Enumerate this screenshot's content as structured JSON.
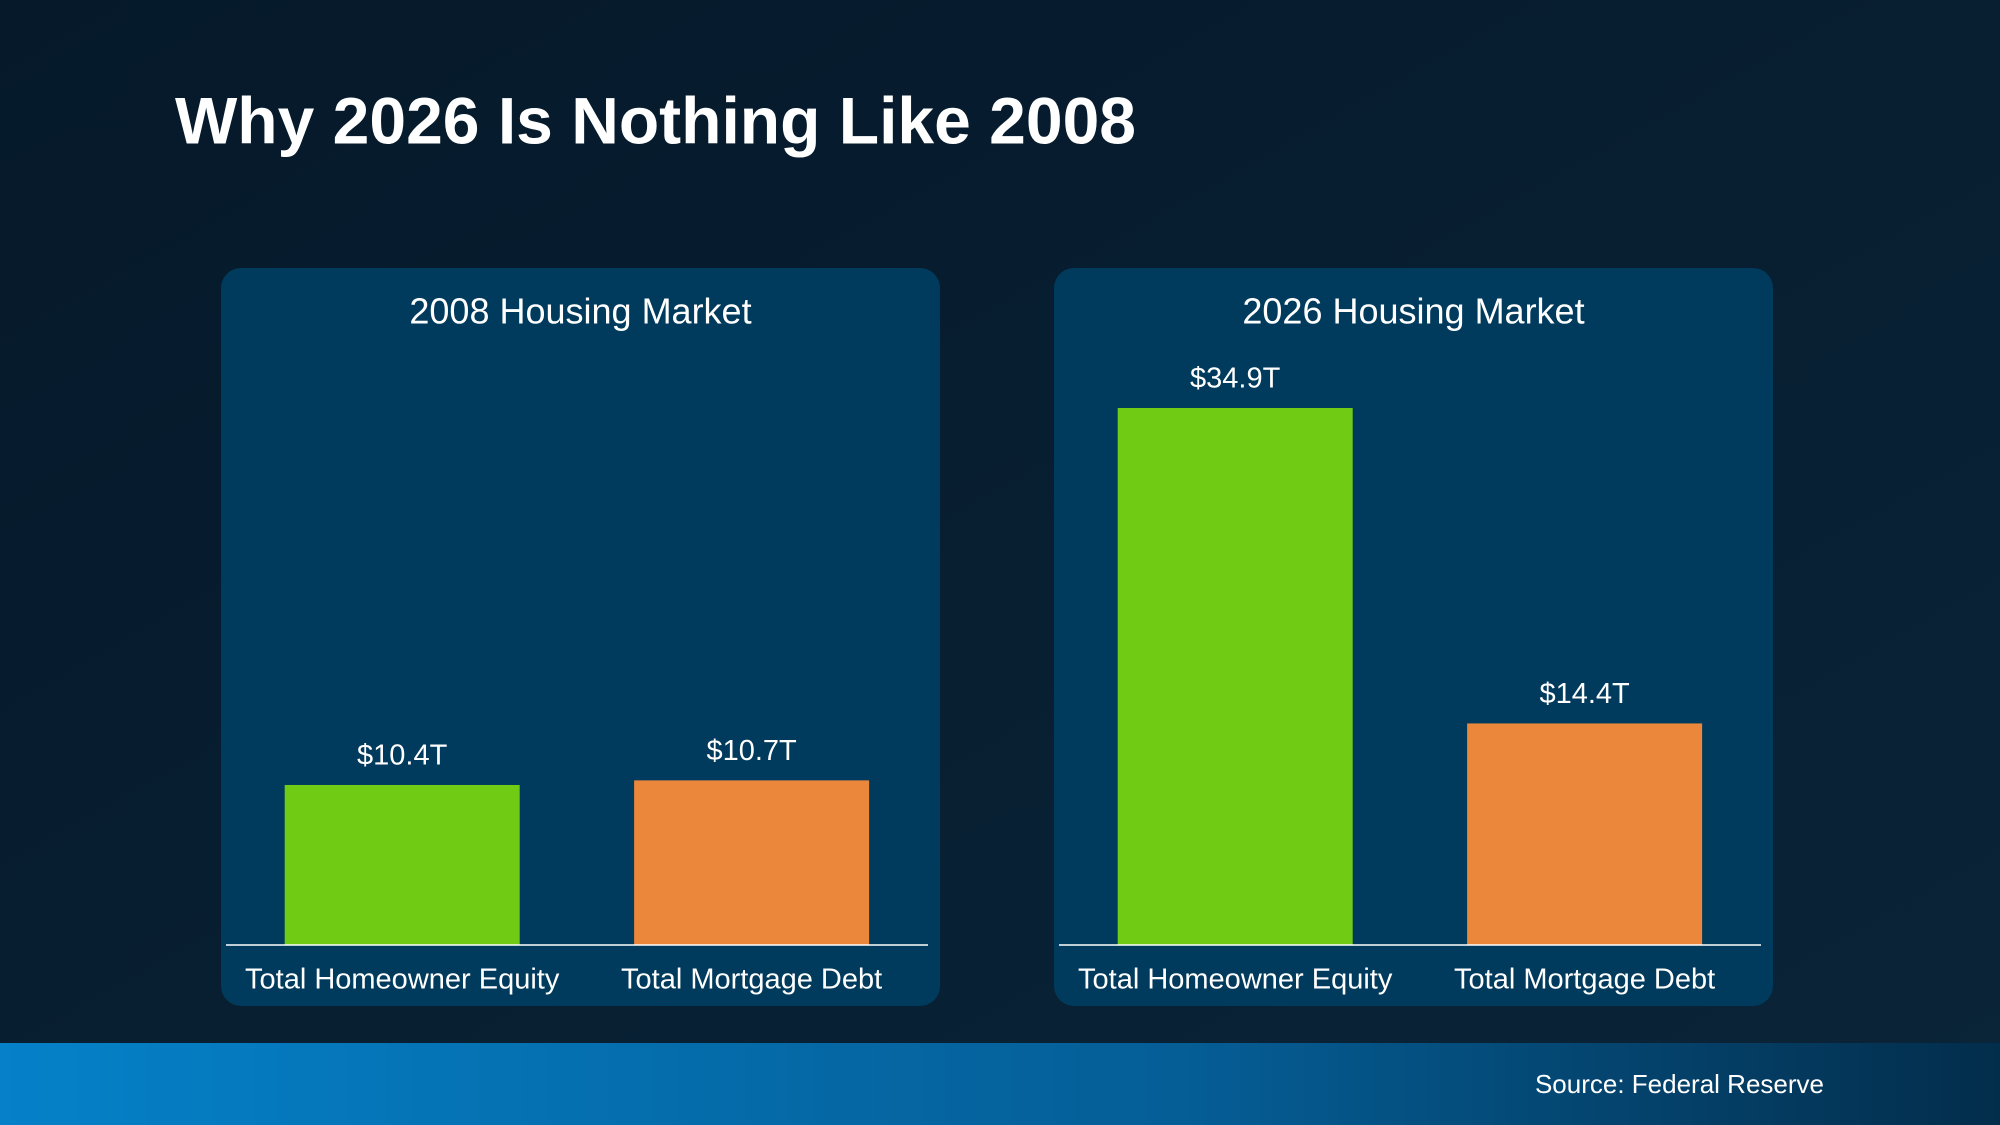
{
  "title": "Why 2026 Is Nothing Like 2008",
  "source": "Source: Federal Reserve",
  "chart_data": [
    {
      "type": "bar",
      "title": "2008 Housing Market",
      "categories": [
        "Total Homeowner Equity",
        "Total Mortgage Debt"
      ],
      "values": [
        10.4,
        10.7
      ],
      "value_labels": [
        "$10.4T",
        "$10.7T"
      ],
      "colors": [
        "#6fcb13",
        "#eb873a"
      ]
    },
    {
      "type": "bar",
      "title": "2026 Housing Market",
      "categories": [
        "Total Homeowner Equity",
        "Total Mortgage Debt"
      ],
      "values": [
        34.9,
        14.4
      ],
      "value_labels": [
        "$34.9T",
        "$14.4T"
      ],
      "colors": [
        "#6fcb13",
        "#eb873a"
      ]
    }
  ]
}
